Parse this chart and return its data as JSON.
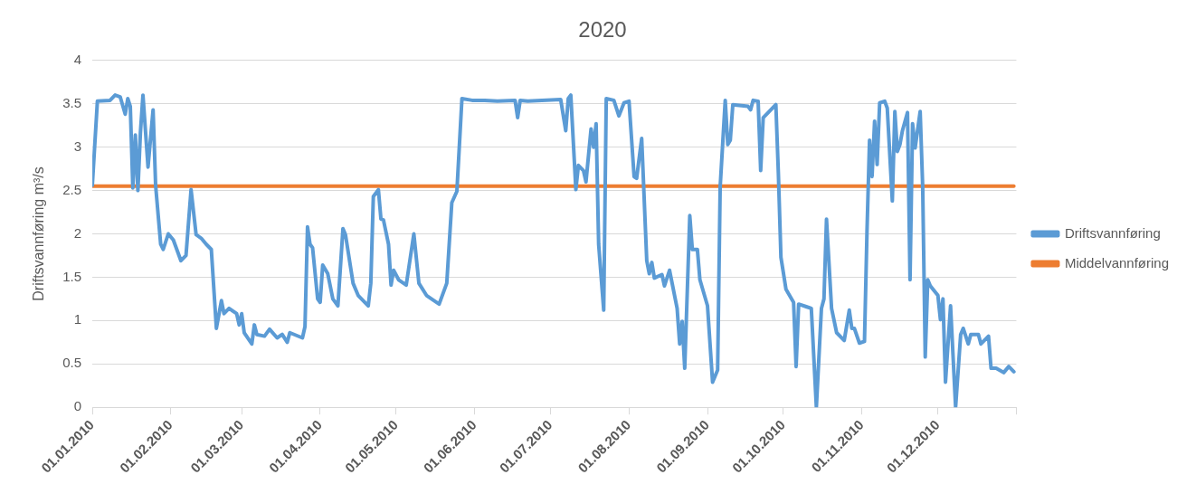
{
  "chart_data": {
    "type": "line",
    "title": "2020",
    "ylabel": "Driftsvannføring m³/s",
    "xlim": [
      "2010-01-01",
      "2011-01-01"
    ],
    "xticks": [
      {
        "value": "2010-01-01",
        "label": "01.01.2010"
      },
      {
        "value": "2010-02-01",
        "label": "01.02.2010"
      },
      {
        "value": "2010-03-01",
        "label": "01.03.2010"
      },
      {
        "value": "2010-04-01",
        "label": "01.04.2010"
      },
      {
        "value": "2010-05-01",
        "label": "01.05.2010"
      },
      {
        "value": "2010-06-01",
        "label": "01.06.2010"
      },
      {
        "value": "2010-07-01",
        "label": "01.07.2010"
      },
      {
        "value": "2010-08-01",
        "label": "01.08.2010"
      },
      {
        "value": "2010-09-01",
        "label": "01.09.2010"
      },
      {
        "value": "2010-10-01",
        "label": "01.10.2010"
      },
      {
        "value": "2010-11-01",
        "label": "01.11.2010"
      },
      {
        "value": "2010-12-01",
        "label": "01.12.2010"
      },
      {
        "value": "2011-01-01",
        "label": null
      }
    ],
    "ylim": [
      0,
      4
    ],
    "yticks": [
      0,
      0.5,
      1,
      1.5,
      2,
      2.5,
      3,
      3.5,
      4
    ],
    "grid": "y",
    "legend": "right",
    "marker": "none",
    "line_style": "solid",
    "series": [
      {
        "name": "Driftsvannføring",
        "color": "#5b9bd5",
        "x": [
          "2010-01-01",
          "2010-01-03",
          "2010-01-08",
          "2010-01-10",
          "2010-01-12",
          "2010-01-14",
          "2010-01-15",
          "2010-01-16",
          "2010-01-17",
          "2010-01-18",
          "2010-01-19",
          "2010-01-20",
          "2010-01-21",
          "2010-01-23",
          "2010-01-25",
          "2010-01-26",
          "2010-01-28",
          "2010-01-29",
          "2010-01-31",
          "2010-02-02",
          "2010-02-05",
          "2010-02-07",
          "2010-02-09",
          "2010-02-11",
          "2010-02-13",
          "2010-02-15",
          "2010-02-17",
          "2010-02-19",
          "2010-02-21",
          "2010-02-22",
          "2010-02-24",
          "2010-02-27",
          "2010-02-28",
          "2010-03-01",
          "2010-03-02",
          "2010-03-05",
          "2010-03-06",
          "2010-03-07",
          "2010-03-10",
          "2010-03-12",
          "2010-03-15",
          "2010-03-17",
          "2010-03-19",
          "2010-03-20",
          "2010-03-25",
          "2010-03-26",
          "2010-03-27",
          "2010-03-28",
          "2010-03-29",
          "2010-03-31",
          "2010-04-01",
          "2010-04-02",
          "2010-04-04",
          "2010-04-06",
          "2010-04-08",
          "2010-04-10",
          "2010-04-11",
          "2010-04-14",
          "2010-04-16",
          "2010-04-20",
          "2010-04-21",
          "2010-04-22",
          "2010-04-24",
          "2010-04-25",
          "2010-04-26",
          "2010-04-28",
          "2010-04-29",
          "2010-04-30",
          "2010-05-02",
          "2010-05-05",
          "2010-05-08",
          "2010-05-10",
          "2010-05-13",
          "2010-05-16",
          "2010-05-18",
          "2010-05-21",
          "2010-05-23",
          "2010-05-25",
          "2010-05-27",
          "2010-05-31",
          "2010-06-05",
          "2010-06-10",
          "2010-06-17",
          "2010-06-18",
          "2010-06-19",
          "2010-06-22",
          "2010-07-05",
          "2010-07-07",
          "2010-07-08",
          "2010-07-09",
          "2010-07-11",
          "2010-07-12",
          "2010-07-14",
          "2010-07-15",
          "2010-07-17",
          "2010-07-18",
          "2010-07-19",
          "2010-07-20",
          "2010-07-22",
          "2010-07-23",
          "2010-07-26",
          "2010-07-28",
          "2010-07-30",
          "2010-08-01",
          "2010-08-03",
          "2010-08-04",
          "2010-08-06",
          "2010-08-08",
          "2010-08-09",
          "2010-08-10",
          "2010-08-11",
          "2010-08-14",
          "2010-08-15",
          "2010-08-17",
          "2010-08-20",
          "2010-08-21",
          "2010-08-22",
          "2010-08-23",
          "2010-08-25",
          "2010-08-26",
          "2010-08-28",
          "2010-08-29",
          "2010-09-01",
          "2010-09-03",
          "2010-09-05",
          "2010-09-06",
          "2010-09-08",
          "2010-09-09",
          "2010-09-10",
          "2010-09-11",
          "2010-09-17",
          "2010-09-18",
          "2010-09-19",
          "2010-09-21",
          "2010-09-22",
          "2010-09-23",
          "2010-09-28",
          "2010-09-29",
          "2010-09-30",
          "2010-10-02",
          "2010-10-05",
          "2010-10-06",
          "2010-10-07",
          "2010-10-10",
          "2010-10-12",
          "2010-10-14",
          "2010-10-16",
          "2010-10-17",
          "2010-10-18",
          "2010-10-20",
          "2010-10-22",
          "2010-10-25",
          "2010-10-27",
          "2010-10-28",
          "2010-10-29",
          "2010-10-31",
          "2010-11-02",
          "2010-11-03",
          "2010-11-04",
          "2010-11-05",
          "2010-11-06",
          "2010-11-07",
          "2010-11-08",
          "2010-11-10",
          "2010-11-11",
          "2010-11-13",
          "2010-11-14",
          "2010-11-15",
          "2010-11-16",
          "2010-11-17",
          "2010-11-19",
          "2010-11-20",
          "2010-11-21",
          "2010-11-22",
          "2010-11-24",
          "2010-11-25",
          "2010-11-26",
          "2010-11-27",
          "2010-11-28",
          "2010-12-01",
          "2010-12-02",
          "2010-12-03",
          "2010-12-04",
          "2010-12-06",
          "2010-12-08",
          "2010-12-10",
          "2010-12-11",
          "2010-12-13",
          "2010-12-14",
          "2010-12-17",
          "2010-12-18",
          "2010-12-21",
          "2010-12-22",
          "2010-12-24",
          "2010-12-27",
          "2010-12-29",
          "2010-12-31"
        ],
        "values": [
          2.56,
          3.53,
          3.54,
          3.6,
          3.58,
          3.38,
          3.56,
          3.47,
          2.53,
          3.14,
          2.5,
          3.17,
          3.6,
          2.77,
          3.43,
          2.56,
          1.88,
          1.82,
          2.0,
          1.93,
          1.69,
          1.75,
          2.51,
          1.99,
          1.95,
          1.88,
          1.82,
          0.91,
          1.23,
          1.08,
          1.14,
          1.08,
          0.95,
          1.08,
          0.86,
          0.73,
          0.95,
          0.84,
          0.82,
          0.9,
          0.8,
          0.84,
          0.75,
          0.86,
          0.8,
          0.93,
          2.08,
          1.88,
          1.84,
          1.25,
          1.21,
          1.64,
          1.54,
          1.25,
          1.17,
          2.06,
          1.99,
          1.43,
          1.29,
          1.17,
          1.43,
          2.43,
          2.51,
          2.17,
          2.16,
          1.88,
          1.41,
          1.58,
          1.47,
          1.41,
          2.0,
          1.43,
          1.29,
          1.23,
          1.19,
          1.43,
          2.36,
          2.49,
          3.56,
          3.54,
          3.54,
          3.53,
          3.54,
          3.34,
          3.54,
          3.53,
          3.55,
          3.19,
          3.56,
          3.6,
          2.51,
          2.79,
          2.73,
          2.6,
          3.21,
          3.0,
          3.27,
          1.88,
          1.12,
          3.56,
          3.54,
          3.36,
          3.51,
          3.53,
          2.66,
          2.64,
          3.1,
          1.69,
          1.54,
          1.67,
          1.49,
          1.53,
          1.4,
          1.58,
          1.14,
          0.73,
          0.99,
          0.45,
          2.21,
          1.82,
          1.82,
          1.47,
          1.17,
          0.29,
          0.43,
          2.54,
          3.54,
          3.03,
          3.08,
          3.49,
          3.47,
          3.43,
          3.54,
          3.53,
          2.73,
          3.34,
          3.49,
          2.69,
          1.73,
          1.36,
          1.21,
          0.47,
          1.19,
          1.16,
          1.14,
          0.0,
          1.14,
          1.25,
          2.17,
          1.14,
          0.86,
          0.77,
          1.12,
          0.91,
          0.91,
          0.74,
          0.76,
          2.03,
          3.08,
          2.66,
          3.3,
          2.8,
          3.51,
          3.53,
          3.45,
          2.38,
          3.41,
          2.95,
          3.03,
          3.19,
          3.4,
          1.47,
          3.27,
          2.99,
          3.41,
          2.54,
          0.58,
          1.47,
          1.4,
          1.29,
          1.01,
          1.25,
          0.29,
          1.17,
          0.0,
          0.84,
          0.91,
          0.73,
          0.84,
          0.84,
          0.73,
          0.82,
          0.45,
          0.45,
          0.4,
          0.47,
          0.41
        ]
      },
      {
        "name": "Middelvannføring",
        "color": "#ed7d31",
        "x": [
          "2010-01-01",
          "2010-12-31"
        ],
        "values": [
          2.55,
          2.55
        ]
      }
    ]
  }
}
